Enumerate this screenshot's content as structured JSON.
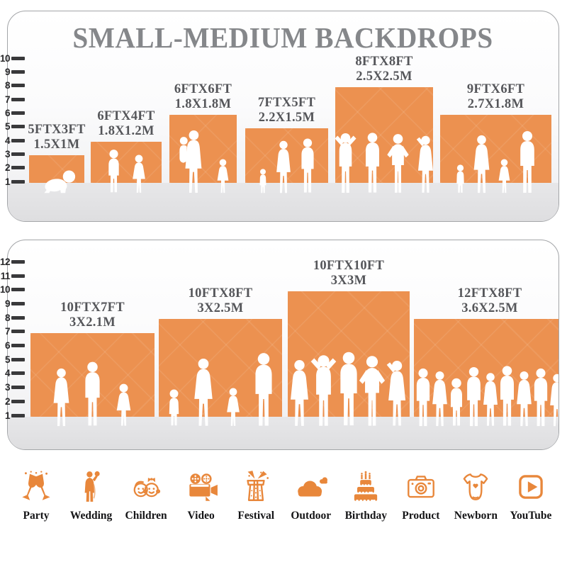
{
  "title": "SMALL-MEDIUM BACKDROPS",
  "colors": {
    "backdrop_orange": "#EC9150",
    "icon_orange": "#E8873B",
    "title_gray": "#85878A",
    "label_gray": "#55565A",
    "ruler_dark": "#39393B",
    "floor_gray": "#E2E2E4"
  },
  "panels": [
    {
      "id": "top",
      "ruler_ticks": [
        "10",
        "9",
        "8",
        "7",
        "6",
        "5",
        "4",
        "3",
        "2",
        "1"
      ],
      "backdrops": [
        {
          "size_ft": "5FTX3FT",
          "size_m": "1.5X1M",
          "figures": [
            "crawling-baby"
          ]
        },
        {
          "size_ft": "6FTX4FT",
          "size_m": "1.8X1.2M",
          "figures": [
            "boy",
            "girl"
          ]
        },
        {
          "size_ft": "6FTX6FT",
          "size_m": "1.8X1.8M",
          "figures": [
            "mother-holding-toddler",
            "girl"
          ]
        },
        {
          "size_ft": "7FTX5FT",
          "size_m": "2.2X1.5M",
          "figures": [
            "toddler",
            "woman",
            "man"
          ]
        },
        {
          "size_ft": "8FTX8FT",
          "size_m": "2.5X2.5M",
          "figures": [
            "man-hands-behind-head",
            "man",
            "man-hands-on-hips",
            "woman-hand-up"
          ]
        },
        {
          "size_ft": "9FTX6FT",
          "size_m": "2.7X1.8M",
          "figures": [
            "toddler",
            "woman",
            "girl",
            "man"
          ]
        }
      ]
    },
    {
      "id": "bottom",
      "ruler_ticks": [
        "12",
        "11",
        "10",
        "9",
        "8",
        "7",
        "6",
        "5",
        "4",
        "3",
        "2",
        "1"
      ],
      "backdrops": [
        {
          "size_ft": "10FTX7FT",
          "size_m": "3X2.1M",
          "figures": [
            "woman",
            "man",
            "girl"
          ]
        },
        {
          "size_ft": "10FTX8FT",
          "size_m": "3X2.5M",
          "figures": [
            "toddler",
            "woman",
            "girl",
            "man"
          ]
        },
        {
          "size_ft": "10FTX10FT",
          "size_m": "3X3M",
          "figures": [
            "woman",
            "man-hands-behind-head",
            "man",
            "man-hands-on-hips",
            "woman-hand-up"
          ]
        },
        {
          "size_ft": "12FTX8FT",
          "size_m": "3.6X2.5M",
          "figures": [
            "man",
            "woman",
            "boy",
            "man",
            "woman",
            "man",
            "woman",
            "man",
            "woman"
          ]
        }
      ]
    }
  ],
  "categories": [
    {
      "label": "Party",
      "icon": "party-icon"
    },
    {
      "label": "Wedding",
      "icon": "wedding-icon"
    },
    {
      "label": "Children",
      "icon": "children-icon"
    },
    {
      "label": "Video",
      "icon": "video-icon"
    },
    {
      "label": "Festival",
      "icon": "festival-icon"
    },
    {
      "label": "Outdoor",
      "icon": "outdoor-icon"
    },
    {
      "label": "Birthday",
      "icon": "birthday-icon"
    },
    {
      "label": "Product",
      "icon": "product-icon"
    },
    {
      "label": "Newborn",
      "icon": "newborn-icon"
    },
    {
      "label": "YouTube",
      "icon": "youtube-icon"
    }
  ]
}
